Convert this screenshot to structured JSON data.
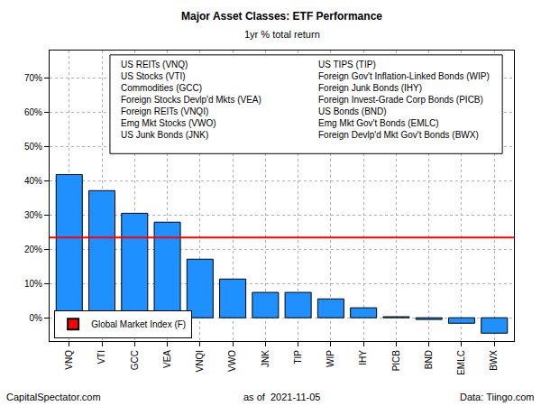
{
  "chart_data": {
    "type": "bar",
    "title": "Major Asset Classes: ETF Performance",
    "subtitle": "1yr % total return",
    "categories": [
      "VNQ",
      "VTI",
      "GCC",
      "VEA",
      "VNQI",
      "VWO",
      "JNK",
      "TIP",
      "WIP",
      "IHY",
      "PICB",
      "BND",
      "EMLC",
      "BWX"
    ],
    "values": [
      41.8,
      37.1,
      30.5,
      27.9,
      17.1,
      11.3,
      7.4,
      7.4,
      5.5,
      2.9,
      0.3,
      -0.5,
      -1.6,
      -4.5
    ],
    "color": "#1e90ff",
    "ylim": [
      -6.8,
      78
    ],
    "yticks": [
      {
        "value": 0,
        "label": "0%"
      },
      {
        "value": 10,
        "label": "10%"
      },
      {
        "value": 20,
        "label": "20%"
      },
      {
        "value": 30,
        "label": "30%"
      },
      {
        "value": 40,
        "label": "40%"
      },
      {
        "value": 50,
        "label": "50%"
      },
      {
        "value": 60,
        "label": "60%"
      },
      {
        "value": 70,
        "label": "70%"
      }
    ],
    "grid": true,
    "reference_line": {
      "name": "Global Market Index (F)",
      "value": 23.4,
      "color": "#ff0000"
    },
    "legend": "bottom left",
    "key_columns": [
      [
        "US REITs (VNQ)",
        "US Stocks (VTI)",
        "Commodities (GCC)",
        "Foreign Stocks Devlp'd Mkts (VEA)",
        "Foreign REITs (VNQI)",
        "Emg Mkt Stocks (VWO)",
        "US Junk Bonds (JNK)"
      ],
      [
        "US TIPS (TIP)",
        "Foreign Gov't Inflation-Linked Bonds (WIP)",
        "Foreign Junk Bonds (IHY)",
        "Foreign Invest-Grade Corp Bonds (PICB)",
        "US Bonds (BND)",
        "Emg Mkt Gov't Bonds (EMLC)",
        "Foreign Devlp'd Mkt Gov't Bonds (BWX)"
      ]
    ],
    "footer": [
      "CapitalSpectator.com",
      "as of  2021-11-05",
      "Data: Tiingo.com"
    ]
  }
}
